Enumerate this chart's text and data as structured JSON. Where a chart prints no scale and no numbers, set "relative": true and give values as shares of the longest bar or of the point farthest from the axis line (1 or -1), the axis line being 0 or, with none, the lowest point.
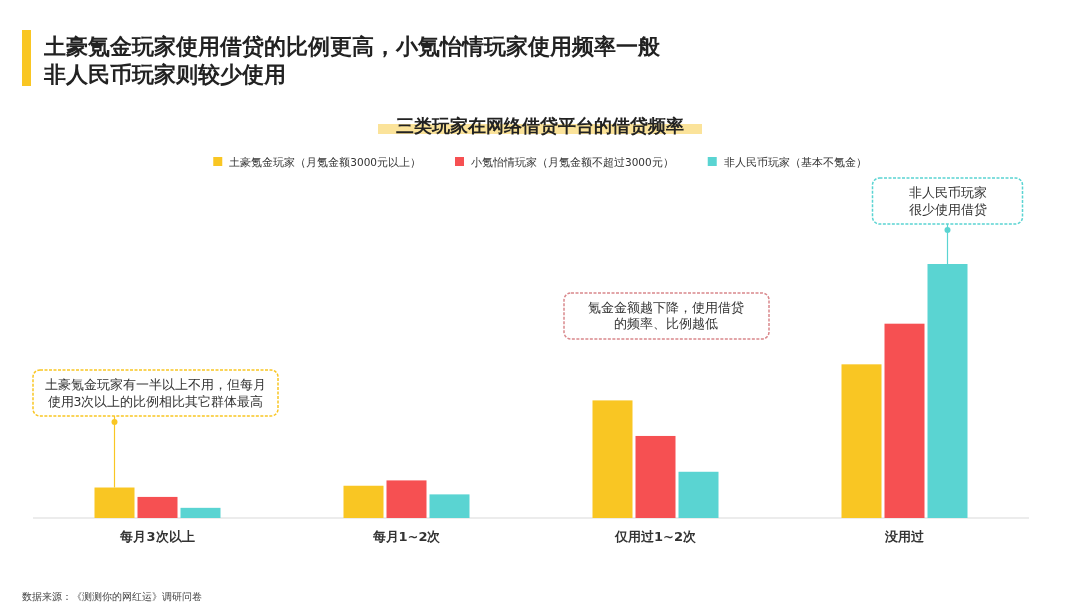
{
  "chart_data": {
    "type": "bar",
    "title": "土豪氪金玩家使用借贷的比例更高，小氪怡情玩家使用频率一般非人民币玩家则较少使用",
    "subtitle": "三类玩家在网络借贷平台的借贷频率",
    "relative": true,
    "legend": "top",
    "categories": [
      "每月3次以上",
      "每月1~2次",
      "仅用过1~2次",
      "没用过"
    ],
    "series": [
      {
        "name": "土豪氪金玩家（月氪金额3000元以上）",
        "color": "#f9c623",
        "values": [
          0.12,
          0.127,
          0.463,
          0.605
        ]
      },
      {
        "name": "小氪怡情玩家（月氪金额不超过3000元）",
        "color": "#f65052",
        "values": [
          0.083,
          0.148,
          0.323,
          0.765
        ]
      },
      {
        "name": "非人民币玩家（基本不氪金）",
        "color": "#5ad4d2",
        "values": [
          0.04,
          0.093,
          0.182,
          1
        ]
      }
    ],
    "annotations": [
      "土豪氪金玩家有一半以上不用，但每月使用3次以上的比例相比其它群体最高",
      "氪金金额越下降，使用借贷的频率、比例越低",
      "非人民币玩家很少使用借贷",
      "数据来源：《测测你的网红运》调研问卷"
    ]
  }
}
